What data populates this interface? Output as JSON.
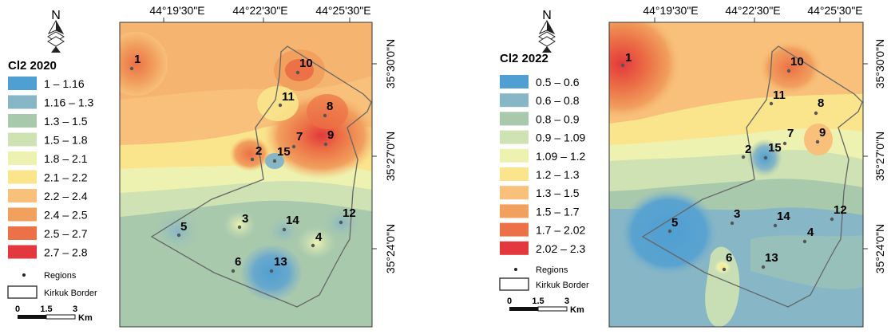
{
  "maps": [
    {
      "legend_title": "Cl2 2020",
      "classes": [
        {
          "label": "1 – 1.16",
          "color": "#4f9fd2"
        },
        {
          "label": "1.16 – 1.3",
          "color": "#87b6c6"
        },
        {
          "label": "1.3 – 1.5",
          "color": "#a9c9ad"
        },
        {
          "label": "1.5 – 1.8",
          "color": "#cfe2b3"
        },
        {
          "label": "1.8 – 2.1",
          "color": "#eef2b0"
        },
        {
          "label": "2.1 – 2.2",
          "color": "#fae58c"
        },
        {
          "label": "2.2 – 2.4",
          "color": "#f8c07a"
        },
        {
          "label": "2.4 – 2.5",
          "color": "#f1a05e"
        },
        {
          "label": "2.5 – 2.7",
          "color": "#ec7146"
        },
        {
          "label": "2.7 – 2.8",
          "color": "#e3383d"
        }
      ],
      "regions_label": "Regions",
      "border_label": "Kirkuk Border",
      "scale_ticks": [
        "0",
        "1.5",
        "3"
      ],
      "scale_unit": "Km",
      "north_label": "N",
      "lon_labels": [
        "44°19'30\"E",
        "44°22'30\"E",
        "44°25'30\"E"
      ],
      "lat_labels": [
        "35°30'0\"N",
        "35°27'0\"N",
        "35°24'0\"N"
      ],
      "sites": [
        "1",
        "2",
        "3",
        "4",
        "5",
        "6",
        "7",
        "8",
        "9",
        "10",
        "11",
        "12",
        "13",
        "14",
        "15"
      ]
    },
    {
      "legend_title": "Cl2 2022",
      "classes": [
        {
          "label": "0.5 – 0.6",
          "color": "#4f9fd2"
        },
        {
          "label": "0.6 – 0.8",
          "color": "#87b6c6"
        },
        {
          "label": "0.8 – 0.9",
          "color": "#a9c9ad"
        },
        {
          "label": "0.9 – 1.09",
          "color": "#cfe2b3"
        },
        {
          "label": "1.09 – 1.2",
          "color": "#eef2b0"
        },
        {
          "label": "1.2 – 1.3",
          "color": "#fae58c"
        },
        {
          "label": "1.3 – 1.5",
          "color": "#f8c07a"
        },
        {
          "label": "1.5 – 1.7",
          "color": "#f1a05e"
        },
        {
          "label": "1.7 – 2.02",
          "color": "#ec7146"
        },
        {
          "label": "2.02 – 2.3",
          "color": "#e3383d"
        }
      ],
      "regions_label": "Regions",
      "border_label": "Kirkuk Border",
      "scale_ticks": [
        "0",
        "1.5",
        "3"
      ],
      "scale_unit": "Km",
      "north_label": "N",
      "lon_labels": [
        "44°19'30\"E",
        "44°22'30\"E",
        "44°25'30\"E"
      ],
      "lat_labels": [
        "35°30'0\"N",
        "35°27'0\"N",
        "35°24'0\"N"
      ],
      "sites": [
        "1",
        "2",
        "3",
        "4",
        "5",
        "6",
        "7",
        "8",
        "9",
        "10",
        "11",
        "12",
        "13",
        "14",
        "15"
      ]
    }
  ]
}
